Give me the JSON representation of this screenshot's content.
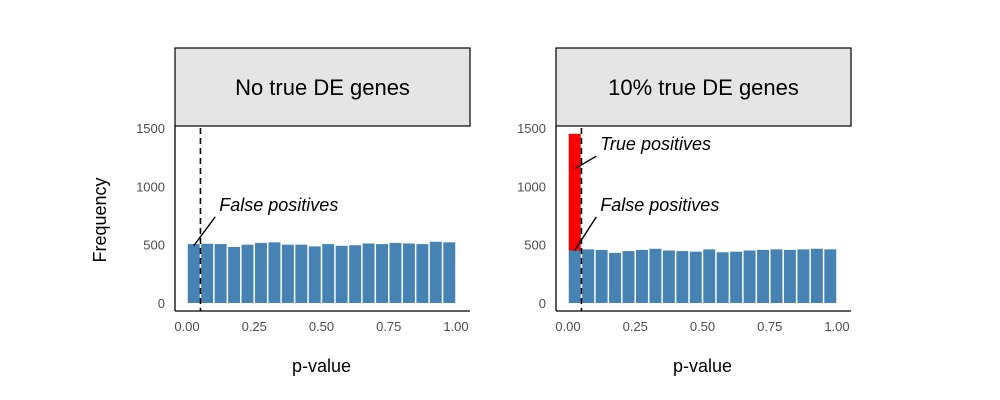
{
  "chart_data": [
    {
      "type": "bar",
      "panel_title": "No true DE genes",
      "xlabel": "p-value",
      "ylabel": "Frequency",
      "xlim": [
        0,
        1
      ],
      "ylim": [
        0,
        1500
      ],
      "x_ticks": [
        0.0,
        0.25,
        0.5,
        0.75,
        1.0
      ],
      "x_tick_labels": [
        "0.00",
        "0.25",
        "0.50",
        "0.75",
        "1.00"
      ],
      "y_ticks": [
        0,
        500,
        1000,
        1500
      ],
      "y_tick_labels": [
        "0",
        "500",
        "1000",
        "1500"
      ],
      "bin_width": 0.05,
      "bin_starts": [
        0.0,
        0.05,
        0.1,
        0.15,
        0.2,
        0.25,
        0.3,
        0.35,
        0.4,
        0.45,
        0.5,
        0.55,
        0.6,
        0.65,
        0.7,
        0.75,
        0.8,
        0.85,
        0.9,
        0.95
      ],
      "series": [
        {
          "values": [
            505,
            508,
            505,
            480,
            500,
            515,
            520,
            500,
            500,
            485,
            505,
            490,
            495,
            510,
            505,
            515,
            510,
            505,
            525,
            520
          ],
          "color": "#4682b4"
        }
      ],
      "threshold": 0.05,
      "annotations": [
        {
          "text": "False positives",
          "x": 0.12,
          "y": 790,
          "arrow_to": [
            0.025,
            490
          ]
        }
      ]
    },
    {
      "type": "bar",
      "panel_title": "10% true DE genes",
      "xlabel": "p-value",
      "ylabel": "",
      "xlim": [
        0,
        1
      ],
      "ylim": [
        0,
        1500
      ],
      "x_ticks": [
        0.0,
        0.25,
        0.5,
        0.75,
        1.0
      ],
      "x_tick_labels": [
        "0.00",
        "0.25",
        "0.50",
        "0.75",
        "1.00"
      ],
      "y_ticks": [
        0,
        500,
        1000,
        1500
      ],
      "y_tick_labels": [
        "0",
        "500",
        "1000",
        "1500"
      ],
      "bin_width": 0.05,
      "bin_starts": [
        0.0,
        0.05,
        0.1,
        0.15,
        0.2,
        0.25,
        0.3,
        0.35,
        0.4,
        0.45,
        0.5,
        0.55,
        0.6,
        0.65,
        0.7,
        0.75,
        0.8,
        0.85,
        0.9,
        0.95
      ],
      "series": [
        {
          "values": [
            450,
            460,
            455,
            430,
            445,
            455,
            465,
            450,
            445,
            440,
            460,
            435,
            440,
            450,
            455,
            460,
            455,
            460,
            465,
            460
          ],
          "color": "#4682b4"
        },
        {
          "values": [
            1000,
            0,
            0,
            0,
            0,
            0,
            0,
            0,
            0,
            0,
            0,
            0,
            0,
            0,
            0,
            0,
            0,
            0,
            0,
            0
          ],
          "color": "#ff0000"
        }
      ],
      "threshold": 0.05,
      "annotations": [
        {
          "text": "True positives",
          "x": 0.12,
          "y": 1310,
          "arrow_to": [
            0.025,
            1150
          ]
        },
        {
          "text": "False positives",
          "x": 0.12,
          "y": 790,
          "arrow_to": [
            0.025,
            450
          ]
        }
      ]
    }
  ]
}
